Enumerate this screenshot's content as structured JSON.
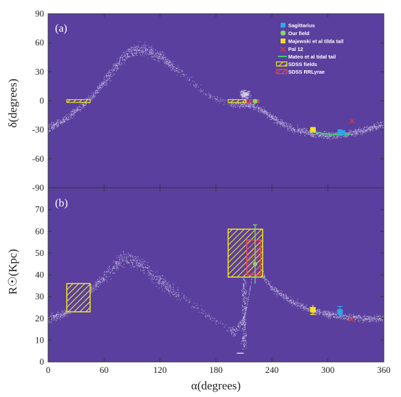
{
  "colors": {
    "plot_bg": "#5a3f9e",
    "stream": "#d8d4ee",
    "sagittarius": "#2aa8e8",
    "our_field": "#8bd36a",
    "majewski": "#f4e21c",
    "pal12": "#e23a3a",
    "mateo": "#46c77a",
    "sdss_fields": "#f2ea1e",
    "sdss_rrlyrae": "#e2505a"
  },
  "chart_data": [
    {
      "type": "scatter",
      "panel_label": "(a)",
      "xlabel": "",
      "ylabel": "δ(degrees)",
      "xlim": [
        0,
        360
      ],
      "ylim": [
        -90,
        90
      ],
      "x_ticks": [
        0,
        60,
        120,
        180,
        240,
        300,
        360
      ],
      "y_ticks": [
        -90,
        -60,
        -30,
        0,
        30,
        60,
        90
      ],
      "legend_position": "top-right",
      "legend": [
        {
          "label": "Sagittarius",
          "marker": "square",
          "color_key": "sagittarius"
        },
        {
          "label": "Our field",
          "marker": "circle",
          "color_key": "our_field"
        },
        {
          "label": "Majewski et al tilda tail",
          "marker": "square",
          "color_key": "majewski"
        },
        {
          "label": "Pal 12",
          "marker": "cross",
          "color_key": "pal12"
        },
        {
          "label": "Mateo et al tidal tail",
          "marker": "line",
          "color_key": "mateo"
        },
        {
          "label": "SDSS fields",
          "marker": "hatched-box",
          "color_key": "sdss_fields"
        },
        {
          "label": "SDSS RRLyrae",
          "marker": "hatched-box",
          "color_key": "sdss_rrlyrae"
        }
      ],
      "stream_track": [
        [
          0,
          -28
        ],
        [
          10,
          -24
        ],
        [
          20,
          -18
        ],
        [
          30,
          -10
        ],
        [
          40,
          -2
        ],
        [
          50,
          8
        ],
        [
          60,
          20
        ],
        [
          70,
          33
        ],
        [
          80,
          45
        ],
        [
          90,
          52
        ],
        [
          100,
          53
        ],
        [
          110,
          51
        ],
        [
          120,
          46
        ],
        [
          130,
          39
        ],
        [
          140,
          31
        ],
        [
          150,
          23
        ],
        [
          160,
          15
        ],
        [
          170,
          8
        ],
        [
          180,
          2
        ],
        [
          190,
          -1
        ],
        [
          200,
          -2
        ],
        [
          210,
          -3
        ],
        [
          220,
          -5
        ],
        [
          230,
          -10
        ],
        [
          240,
          -17
        ],
        [
          250,
          -23
        ],
        [
          260,
          -28
        ],
        [
          270,
          -31
        ],
        [
          280,
          -33
        ],
        [
          290,
          -35
        ],
        [
          300,
          -36
        ],
        [
          310,
          -35
        ],
        [
          320,
          -34
        ],
        [
          330,
          -32
        ],
        [
          340,
          -30
        ],
        [
          350,
          -27
        ],
        [
          360,
          -24
        ]
      ],
      "core_cluster": {
        "ra": 211,
        "dec": 7
      },
      "sdss_fields": [
        {
          "ra_min": 20,
          "ra_max": 45,
          "dec_min": -1.2,
          "dec_max": 1.2
        },
        {
          "ra_min": 193,
          "ra_max": 212,
          "dec_min": -1.2,
          "dec_max": 1.2
        }
      ],
      "sdss_rrlyrae": [
        {
          "ra_min": 213,
          "ra_max": 226,
          "dec_min": -1.2,
          "dec_max": 1.2
        }
      ],
      "sagittarius": [
        {
          "ra": 313,
          "dec": -32
        },
        {
          "ra": 316,
          "dec": -33
        }
      ],
      "our_field": [
        {
          "ra": 222,
          "dec": -0.5
        }
      ],
      "majewski": [
        {
          "ra": 284,
          "dec": -30
        }
      ],
      "pal12": [
        {
          "ra": 326,
          "dec": -21
        }
      ],
      "mateo_tail": [
        [
          285,
          -32
        ],
        [
          295,
          -34
        ],
        [
          305,
          -35
        ],
        [
          315,
          -35
        ],
        [
          325,
          -34
        ]
      ]
    },
    {
      "type": "scatter",
      "panel_label": "(b)",
      "xlabel": "α(degrees)",
      "ylabel": "R☉(Kpc)",
      "xlim": [
        0,
        360
      ],
      "ylim": [
        0,
        80
      ],
      "x_ticks": [
        0,
        60,
        120,
        180,
        240,
        300,
        360
      ],
      "y_ticks": [
        0,
        10,
        20,
        30,
        40,
        50,
        60,
        70
      ],
      "stream_track": [
        [
          0,
          20
        ],
        [
          10,
          21
        ],
        [
          20,
          23
        ],
        [
          30,
          27
        ],
        [
          40,
          31
        ],
        [
          50,
          35
        ],
        [
          60,
          39
        ],
        [
          70,
          44
        ],
        [
          80,
          48
        ],
        [
          90,
          47
        ],
        [
          100,
          45
        ],
        [
          110,
          41
        ],
        [
          120,
          37
        ],
        [
          130,
          34
        ],
        [
          140,
          31
        ],
        [
          150,
          28
        ],
        [
          160,
          25
        ],
        [
          170,
          22
        ],
        [
          180,
          19
        ],
        [
          190,
          16
        ],
        [
          200,
          14
        ],
        [
          210,
          20
        ],
        [
          220,
          42
        ],
        [
          230,
          40
        ],
        [
          240,
          34
        ],
        [
          250,
          31
        ],
        [
          260,
          28
        ],
        [
          270,
          26
        ],
        [
          280,
          24
        ],
        [
          290,
          23
        ],
        [
          300,
          22
        ],
        [
          310,
          21.5
        ],
        [
          320,
          21
        ],
        [
          330,
          20.5
        ],
        [
          340,
          20
        ],
        [
          350,
          20
        ],
        [
          360,
          20
        ]
      ],
      "sdss_fields": [
        {
          "ra_min": 20,
          "ra_max": 45,
          "r_min": 23,
          "r_max": 36
        },
        {
          "ra_min": 193,
          "ra_max": 230,
          "r_min": 39,
          "r_max": 61
        }
      ],
      "sdss_rrlyrae": [
        {
          "ra_min": 213,
          "ra_max": 228,
          "r_min": 40,
          "r_max": 56
        }
      ],
      "our_field": [
        {
          "ra": 222,
          "r": 45,
          "err_low": 9,
          "err_high": 18
        }
      ],
      "majewski": [
        {
          "ra": 284,
          "r": 24,
          "err": 2.2
        }
      ],
      "sagittarius": [
        {
          "ra": 313,
          "r": 23,
          "err": 2.5
        }
      ],
      "pal12": [
        {
          "ra": 325,
          "r": 19.5
        }
      ],
      "annotation_dash": {
        "ra": 206,
        "r": 4
      }
    }
  ]
}
